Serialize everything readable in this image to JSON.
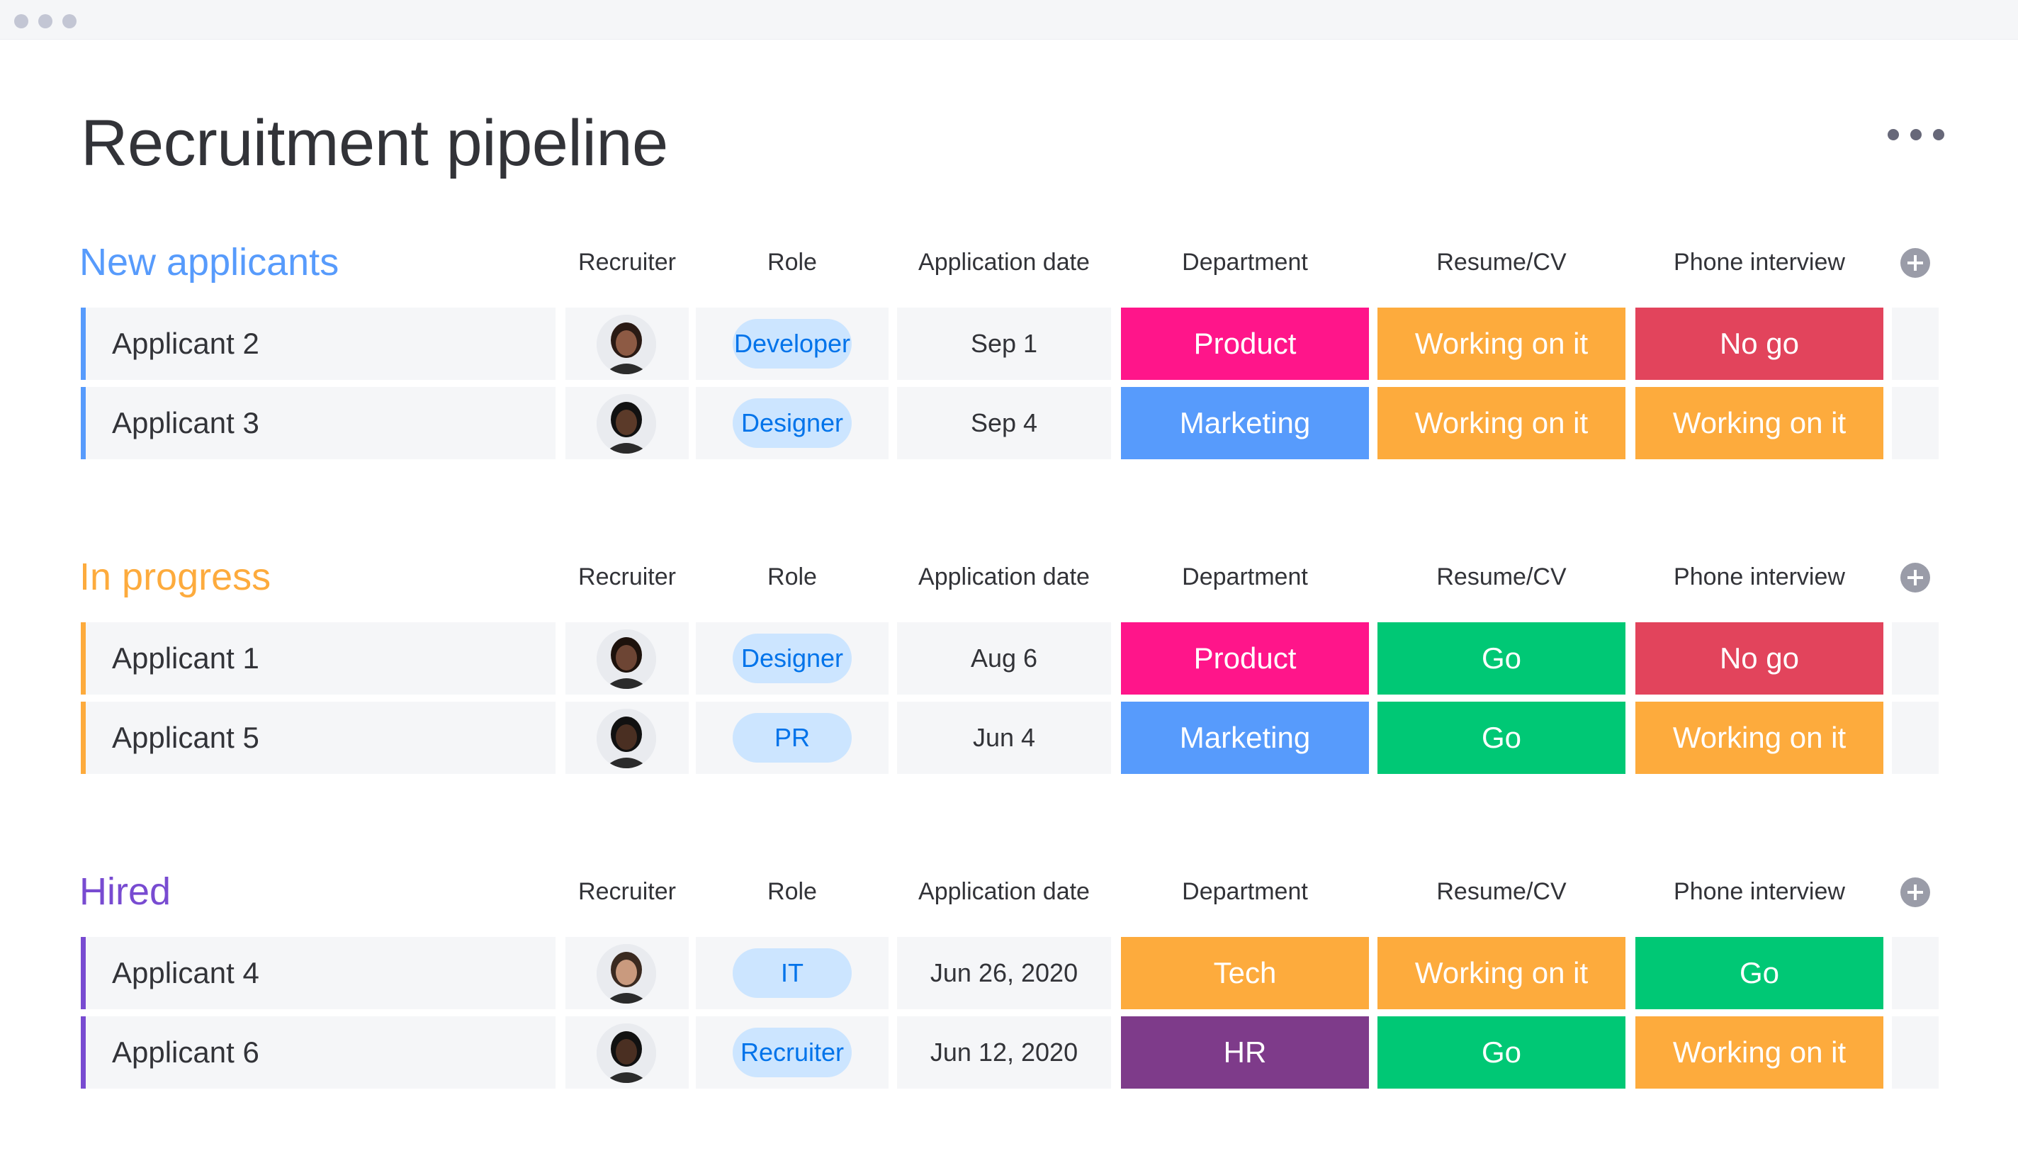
{
  "page": {
    "title": "Recruitment pipeline"
  },
  "columns": {
    "recruiter": "Recruiter",
    "role": "Role",
    "date": "Application date",
    "department": "Department",
    "resume": "Resume/CV",
    "phone": "Phone interview"
  },
  "colors": {
    "product": "#ff158a",
    "marketing": "#579bfc",
    "tech": "#fdab3d",
    "hr": "#784bd1",
    "hr_dark": "#7e3b8a",
    "working": "#fdab3d",
    "go": "#00c875",
    "nogo": "#e2445c"
  },
  "groups": [
    {
      "title": "New applicants",
      "color": "#579bfc",
      "rows": [
        {
          "name": "Applicant 2",
          "avatar": "recruiter-avatar-woman",
          "role": "Developer",
          "date": "Sep 1",
          "department": "Product",
          "resume": "Working on it",
          "phone": "No go"
        },
        {
          "name": "Applicant 3",
          "avatar": "recruiter-avatar-man",
          "role": "Designer",
          "date": "Sep 4",
          "department": "Marketing",
          "resume": "Working on it",
          "phone": "Working on it"
        }
      ]
    },
    {
      "title": "In progress",
      "color": "#fdab3d",
      "rows": [
        {
          "name": "Applicant 1",
          "avatar": "recruiter-avatar-woman-curly",
          "role": "Designer",
          "date": "Aug 6",
          "department": "Product",
          "resume": "Go",
          "phone": "No go"
        },
        {
          "name": "Applicant 5",
          "avatar": "recruiter-avatar-man",
          "role": "PR",
          "date": "Jun 4",
          "department": "Marketing",
          "resume": "Go",
          "phone": "Working on it"
        }
      ]
    },
    {
      "title": "Hired",
      "color": "#784bd1",
      "rows": [
        {
          "name": "Applicant 4",
          "avatar": "recruiter-avatar-man-beard",
          "role": "IT",
          "date": "Jun 26, 2020",
          "department": "Tech",
          "resume": "Working on it",
          "phone": "Go"
        },
        {
          "name": "Applicant 6",
          "avatar": "recruiter-avatar-man",
          "role": "Recruiter",
          "date": "Jun 12, 2020",
          "department": "HR",
          "resume": "Go",
          "phone": "Working on it"
        }
      ]
    }
  ]
}
